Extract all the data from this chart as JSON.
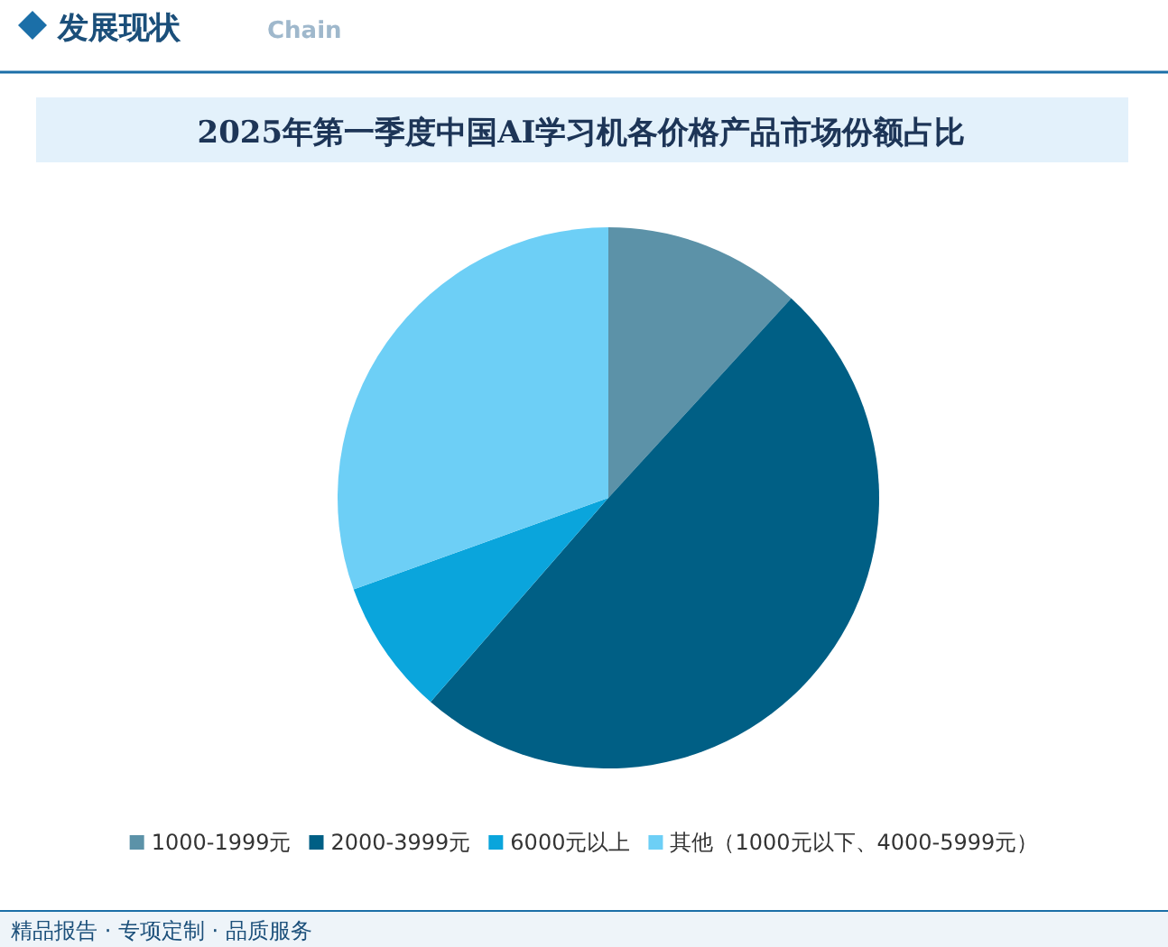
{
  "chart_data": {
    "type": "pie",
    "title": "2025年第一季度中国AI学习机各价格产品市场份额占比",
    "categories": [
      "1000-1999元",
      "2000-3999元",
      "6000元以上",
      "其他（1000元以下、4000-5999元）"
    ],
    "values": [
      11.8,
      49.6,
      8.1,
      30.5
    ],
    "colors": [
      "#5c92a8",
      "#005f85",
      "#0aa5dc",
      "#6dcff6"
    ],
    "legend": "bottom",
    "annotations": [
      "发展现状",
      "Chain",
      "精品报告 · 专项定制 · 品质服务"
    ]
  }
}
